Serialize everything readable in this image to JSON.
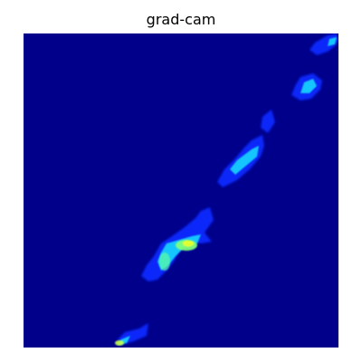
{
  "title": "grad-cam",
  "image": {
    "description_kind": "heatmap",
    "colormap": "jet",
    "background_color": "#00008b"
  }
}
